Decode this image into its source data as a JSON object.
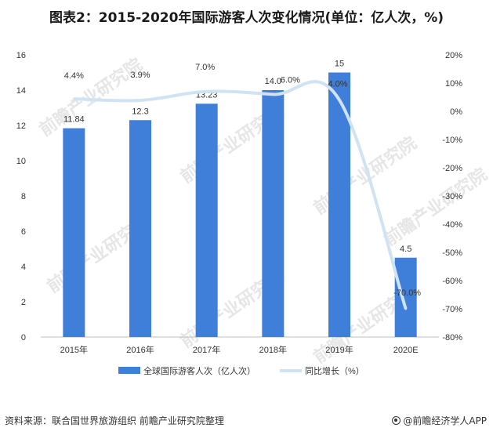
{
  "title": "图表2：2015-2020年国际游客人次变化情况(单位：亿人次，%)",
  "source": "资料来源：联合国世界旅游组织 前瞻产业研究院整理",
  "credit": "@前瞻经济学人APP",
  "watermark": "前瞻产业研究院",
  "colors": {
    "bar": "#3f7fd9",
    "line": "#cfe3f3",
    "axis": "#bfbfbf",
    "text": "#333333"
  },
  "chart_data": {
    "type": "bar",
    "categories": [
      "2015年",
      "2016年",
      "2017年",
      "2018年",
      "2019年",
      "2020E"
    ],
    "series": [
      {
        "name": "全球国际游客人次（亿人次）",
        "type": "bar",
        "axis": "left",
        "values": [
          11.84,
          12.3,
          13.23,
          14.0,
          15,
          4.5
        ],
        "labels": [
          "11.84",
          "12.3",
          "13.23",
          "14.0",
          "15",
          "4.5"
        ]
      },
      {
        "name": "同比增长（%）",
        "type": "line",
        "axis": "right",
        "values": [
          4.4,
          3.9,
          7.0,
          6.0,
          4.0,
          -70.0
        ],
        "labels": [
          "4.4%",
          "3.9%",
          "7.0%",
          "6.0%",
          "4.0%",
          "-70.0%"
        ]
      }
    ],
    "y_left": {
      "min": 0,
      "max": 16,
      "ticks": [
        "0",
        "2",
        "4",
        "6",
        "8",
        "10",
        "12",
        "14",
        "16"
      ]
    },
    "y_right": {
      "min": -80,
      "max": 20,
      "ticks": [
        "20%",
        "10%",
        "0%",
        "-10%",
        "-20%",
        "-30%",
        "-40%",
        "-50%",
        "-60%",
        "-70%",
        "-80%"
      ]
    },
    "grid": false,
    "legend_position": "bottom"
  }
}
